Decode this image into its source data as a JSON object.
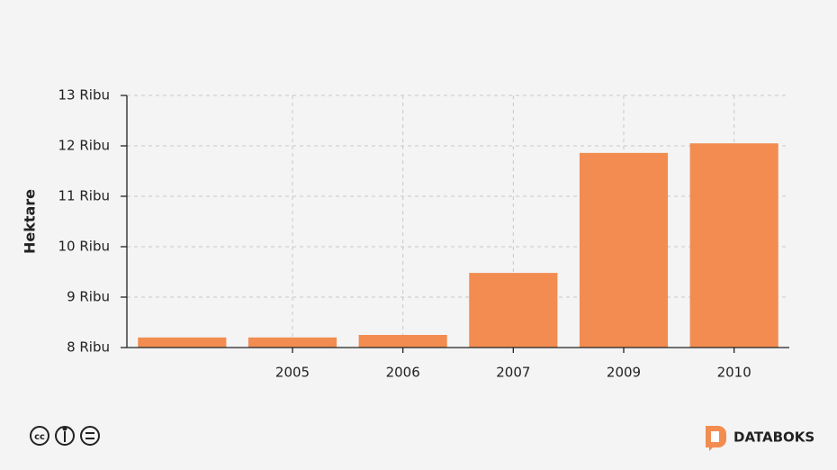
{
  "chart_data": {
    "type": "bar",
    "y_label": "Hektare",
    "categories": [
      null,
      "2005",
      "2006",
      "2007",
      "2009",
      "2010"
    ],
    "values": [
      8200,
      8200,
      8250,
      9480,
      11860,
      12050
    ],
    "color": "#f28c51",
    "ylim": [
      8000,
      13000
    ],
    "yticks": [
      {
        "value": 8000,
        "label": "8 Ribu"
      },
      {
        "value": 9000,
        "label": "9 Ribu"
      },
      {
        "value": 10000,
        "label": "10 Ribu"
      },
      {
        "value": 11000,
        "label": "11 Ribu"
      },
      {
        "value": 12000,
        "label": "12 Ribu"
      },
      {
        "value": 13000,
        "label": "13 Ribu"
      }
    ],
    "grid": true
  },
  "footer": {
    "brand": "DATABOKS"
  }
}
